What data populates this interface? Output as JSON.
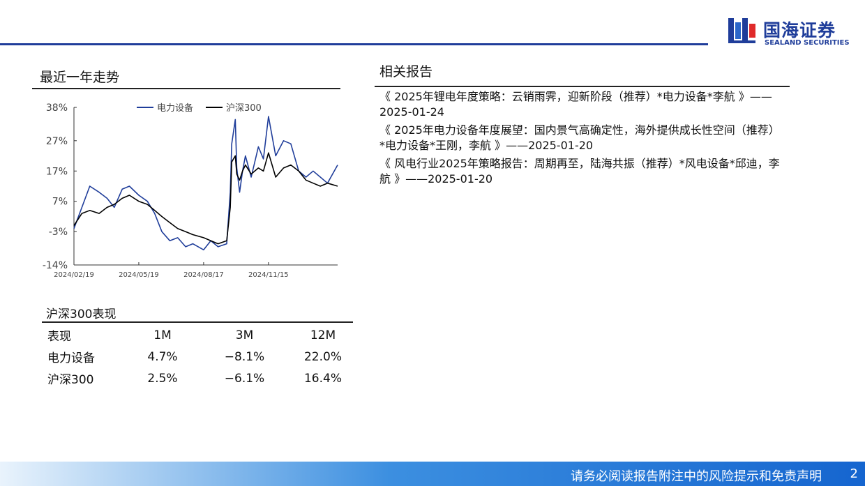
{
  "brand": {
    "name_cn": "国海证券",
    "name_en": "SEALAND SECURITIES",
    "color": "#1f3d9a"
  },
  "trend_section": {
    "title": "最近一年走势"
  },
  "chart_data": {
    "type": "line",
    "title": "",
    "xlabel": "",
    "ylabel": "",
    "ylim": [
      -14,
      38
    ],
    "yticks": [
      "38%",
      "27%",
      "17%",
      "7%",
      "-3%",
      "-14%"
    ],
    "ytick_values": [
      38,
      27,
      17,
      7,
      -3,
      -14
    ],
    "xticks": [
      "2024/02/19",
      "2024/05/19",
      "2024/08/17",
      "2024/11/15"
    ],
    "x_range": [
      "2024/02/19",
      "2025/02/19"
    ],
    "legend": [
      "电力设备",
      "沪深300"
    ],
    "legend_position": "top",
    "grid": false,
    "series": [
      {
        "name": "电力设备",
        "color": "#1f3d9a",
        "x": [
          "2024/02/19",
          "2024/03/01",
          "2024/03/12",
          "2024/03/25",
          "2024/04/05",
          "2024/04/15",
          "2024/04/26",
          "2024/05/06",
          "2024/05/19",
          "2024/05/31",
          "2024/06/10",
          "2024/06/20",
          "2024/07/01",
          "2024/07/12",
          "2024/07/23",
          "2024/08/02",
          "2024/08/17",
          "2024/08/27",
          "2024/09/06",
          "2024/09/18",
          "2024/09/23",
          "2024/09/25",
          "2024/09/30",
          "2024/10/02",
          "2024/10/06",
          "2024/10/10",
          "2024/10/14",
          "2024/10/22",
          "2024/11/01",
          "2024/11/08",
          "2024/11/15",
          "2024/11/25",
          "2024/12/06",
          "2024/12/16",
          "2024/12/27",
          "2025/01/06",
          "2025/01/16",
          "2025/01/26",
          "2025/02/05",
          "2025/02/19"
        ],
        "values": [
          -2,
          5,
          12,
          10,
          8,
          5,
          11,
          12,
          9,
          7,
          3,
          -3,
          -6,
          -5,
          -8,
          -7,
          -9,
          -6,
          -8,
          -7,
          10,
          26,
          34,
          18,
          10,
          17,
          22,
          15,
          25,
          21,
          35,
          22,
          27,
          26,
          17,
          15,
          17,
          15,
          13,
          19
        ]
      },
      {
        "name": "沪深300",
        "color": "#000000",
        "x": [
          "2024/02/19",
          "2024/03/01",
          "2024/03/12",
          "2024/03/25",
          "2024/04/05",
          "2024/04/15",
          "2024/04/26",
          "2024/05/06",
          "2024/05/19",
          "2024/05/31",
          "2024/06/10",
          "2024/06/20",
          "2024/07/01",
          "2024/07/12",
          "2024/07/23",
          "2024/08/02",
          "2024/08/17",
          "2024/08/27",
          "2024/09/06",
          "2024/09/18",
          "2024/09/23",
          "2024/09/25",
          "2024/09/30",
          "2024/10/02",
          "2024/10/06",
          "2024/10/10",
          "2024/10/14",
          "2024/10/22",
          "2024/11/01",
          "2024/11/08",
          "2024/11/15",
          "2024/11/25",
          "2024/12/06",
          "2024/12/16",
          "2024/12/27",
          "2025/01/06",
          "2025/01/16",
          "2025/01/26",
          "2025/02/05",
          "2025/02/19"
        ],
        "values": [
          -1,
          3,
          4,
          3,
          5,
          6,
          8,
          9,
          7,
          6,
          4,
          2,
          0,
          -2,
          -3,
          -4,
          -5,
          -6,
          -7,
          -6,
          5,
          20,
          22,
          16,
          14,
          17,
          19,
          16,
          18,
          17,
          23,
          15,
          18,
          19,
          17,
          14,
          13,
          12,
          13,
          12
        ]
      }
    ]
  },
  "perf_section": {
    "title": "沪深300表现",
    "headers": [
      "表现",
      "1M",
      "3M",
      "12M"
    ],
    "rows": [
      [
        "电力设备",
        "4.7%",
        "−8.1%",
        "22.0%"
      ],
      [
        "沪深300",
        "2.5%",
        "−6.1%",
        "16.4%"
      ]
    ]
  },
  "reports_section": {
    "title": "相关报告",
    "items": [
      "《 2025年锂电年度策略：云销雨霁，迎新阶段（推荐）*电力设备*李航 》——2025-01-24",
      "《 2025年电力设备年度展望：国内景气高确定性，海外提供成长性空间（推荐）*电力设备*王刚，李航 》——2025-01-20",
      "《 风电行业2025年策略报告：周期再至，陆海共振（推荐）*风电设备*邱迪，李航 》——2025-01-20"
    ]
  },
  "footer": {
    "disclaimer": "请务必阅读报告附注中的风险提示和免责声明",
    "page": "2"
  }
}
